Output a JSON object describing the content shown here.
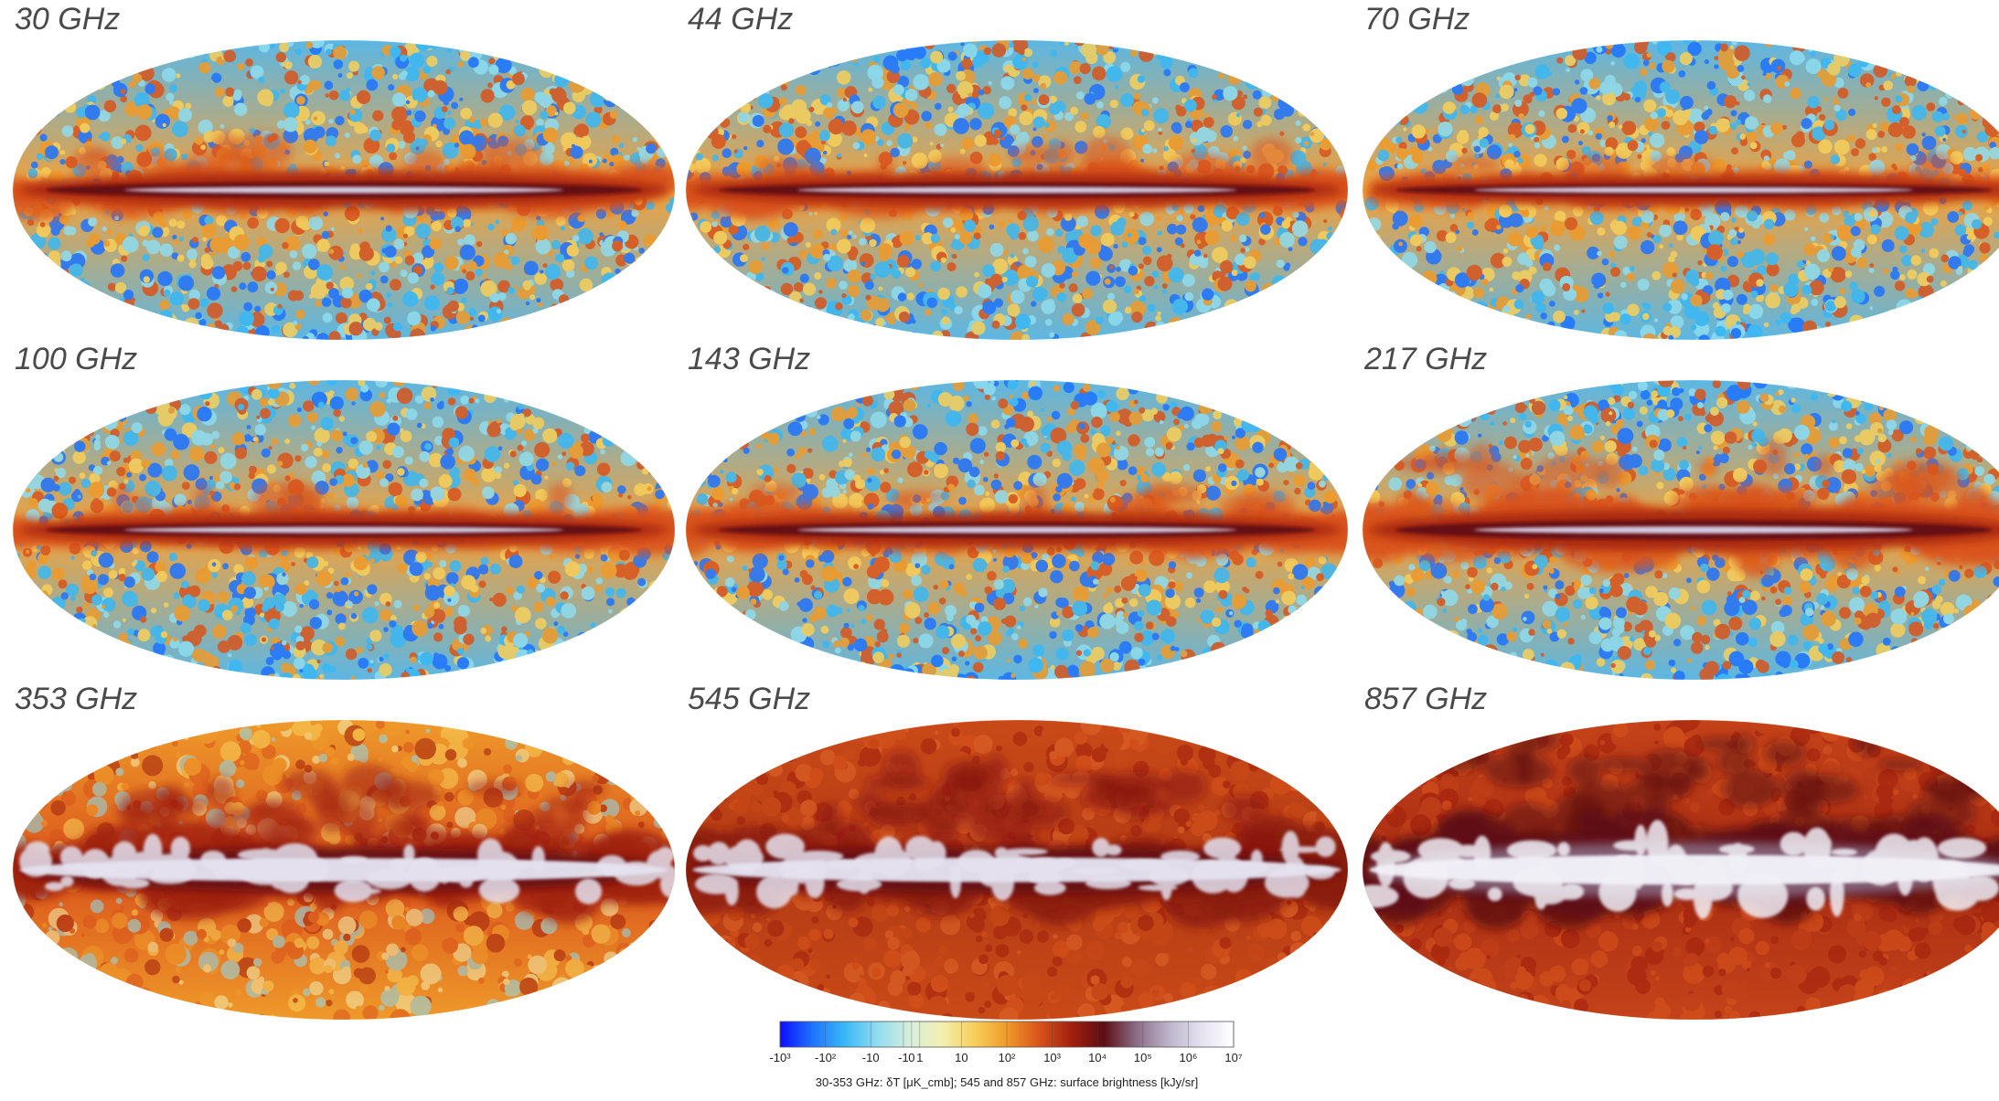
{
  "maps": [
    {
      "label": "30 GHz",
      "style": "cmb",
      "band": 1.0,
      "plume": 0.4
    },
    {
      "label": "44 GHz",
      "style": "cmb",
      "band": 0.85,
      "plume": 0.3
    },
    {
      "label": "70 GHz",
      "style": "cmb",
      "band": 0.55,
      "plume": 0.15
    },
    {
      "label": "100 GHz",
      "style": "cmb",
      "band": 0.75,
      "plume": 0.25
    },
    {
      "label": "143 GHz",
      "style": "cmb",
      "band": 0.9,
      "plume": 0.35
    },
    {
      "label": "217 GHz",
      "style": "cmb",
      "band": 1.35,
      "plume": 0.9
    },
    {
      "label": "353 GHz",
      "style": "dust353",
      "band": 1.6,
      "plume": 1.2
    },
    {
      "label": "545 GHz",
      "style": "dust545",
      "band": 1.7,
      "plume": 1.3
    },
    {
      "label": "857 GHz",
      "style": "dust857",
      "band": 2.2,
      "plume": 1.8
    }
  ],
  "colorbar": {
    "tick_labels": [
      "-10³",
      "-10²",
      "-10",
      "-1",
      "0",
      "1",
      "10",
      "10²",
      "10³",
      "10⁴",
      "10⁵",
      "10⁶",
      "10⁷"
    ],
    "caption": "30-353 GHz: δT [μK_cmb]; 545 and 857 GHz: surface brightness [kJy/sr]",
    "colors": [
      "#0d0dff",
      "#1e73ff",
      "#39b8f5",
      "#8fdcef",
      "#d8eedc",
      "#f3efb0",
      "#f7cf5a",
      "#ef9a2a",
      "#d9541c",
      "#a0200e",
      "#5e0d14",
      "#8a6e86",
      "#bcb4cc",
      "#e5e2ef",
      "#ffffff"
    ]
  }
}
